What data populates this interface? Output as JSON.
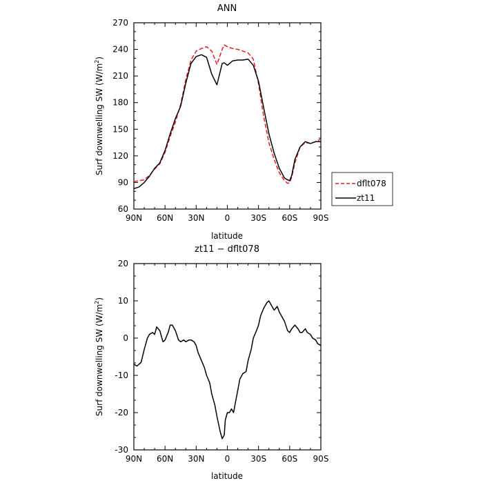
{
  "chart_data": [
    {
      "type": "line",
      "title": "ANN",
      "xlabel": "latitude",
      "ylabel": "Surf downwelling SW (W/m²)",
      "ylabel_main": "Surf downwelling SW (W/m",
      "ylabel_sup": "2",
      "ylabel_close": ")",
      "xlim": [
        90,
        -90
      ],
      "ylim": [
        60,
        270
      ],
      "x_ticks": [
        {
          "value": 90,
          "label": "90N"
        },
        {
          "value": 60,
          "label": "60N"
        },
        {
          "value": 30,
          "label": "30N"
        },
        {
          "value": 0,
          "label": "0"
        },
        {
          "value": -30,
          "label": "30S"
        },
        {
          "value": -60,
          "label": "60S"
        },
        {
          "value": -90,
          "label": "90S"
        }
      ],
      "y_ticks": [
        60,
        90,
        120,
        150,
        180,
        210,
        240,
        270
      ],
      "legend_position": "right",
      "series": [
        {
          "name": "dflt078",
          "color": "#e8191c",
          "dash": "dashed",
          "x": [
            90,
            85,
            80,
            75,
            70,
            65,
            60,
            55,
            50,
            45,
            40,
            35,
            30,
            25,
            20,
            15,
            10,
            5,
            3,
            0,
            -5,
            -10,
            -15,
            -20,
            -25,
            -30,
            -35,
            -40,
            -45,
            -50,
            -55,
            -58,
            -60,
            -62,
            -65,
            -70,
            -75,
            -80,
            -85,
            -90
          ],
          "y": [
            91,
            92,
            93,
            98,
            105,
            111,
            124,
            142,
            158,
            178,
            206,
            228,
            238,
            241,
            243,
            238,
            223,
            240,
            245,
            243,
            241,
            240,
            238,
            236,
            229,
            201,
            164,
            135,
            116,
            101,
            92,
            89,
            90,
            96,
            112,
            130,
            135,
            134,
            136,
            139
          ]
        },
        {
          "name": "zt11",
          "color": "#000000",
          "dash": "solid",
          "x": [
            90,
            85,
            80,
            75,
            70,
            65,
            60,
            55,
            50,
            45,
            40,
            35,
            30,
            25,
            20,
            15,
            10,
            5,
            3,
            0,
            -5,
            -10,
            -15,
            -20,
            -25,
            -30,
            -35,
            -40,
            -45,
            -50,
            -55,
            -58,
            -60,
            -62,
            -65,
            -70,
            -75,
            -80,
            -85,
            -90
          ],
          "y": [
            83,
            85,
            90,
            97,
            106,
            112,
            126,
            145,
            162,
            176,
            202,
            224,
            232,
            234,
            231,
            212,
            200,
            224,
            225,
            222,
            227,
            228,
            228,
            229,
            222,
            204,
            174,
            145,
            123,
            106,
            95,
            93,
            92,
            98,
            116,
            130,
            136,
            134,
            136,
            136
          ]
        }
      ]
    },
    {
      "type": "line",
      "title": "zt11 − dflt078",
      "xlabel": "latitude",
      "ylabel": "Surf downwelling SW (W/m²)",
      "ylabel_main": "Surf downwelling SW (W/m",
      "ylabel_sup": "2",
      "ylabel_close": ")",
      "xlim": [
        90,
        -90
      ],
      "ylim": [
        -30,
        20
      ],
      "x_ticks": [
        {
          "value": 90,
          "label": "90N"
        },
        {
          "value": 60,
          "label": "60N"
        },
        {
          "value": 30,
          "label": "30N"
        },
        {
          "value": 0,
          "label": "0"
        },
        {
          "value": -30,
          "label": "30S"
        },
        {
          "value": -60,
          "label": "60S"
        },
        {
          "value": -90,
          "label": "90S"
        }
      ],
      "y_ticks": [
        -30,
        -20,
        -10,
        0,
        10,
        20
      ],
      "series": [
        {
          "name": "",
          "color": "#000000",
          "dash": "solid",
          "x": [
            90,
            87,
            85,
            83,
            80,
            77,
            75,
            72,
            70,
            68,
            65,
            62,
            60,
            57,
            55,
            53,
            50,
            47,
            45,
            42,
            40,
            37,
            35,
            32,
            30,
            28,
            25,
            22,
            20,
            17,
            15,
            12,
            10,
            7,
            5,
            3,
            2,
            0,
            -2,
            -4,
            -6,
            -8,
            -10,
            -12,
            -15,
            -18,
            -20,
            -23,
            -25,
            -28,
            -30,
            -32,
            -35,
            -38,
            -40,
            -42,
            -45,
            -48,
            -50,
            -53,
            -55,
            -58,
            -60,
            -62,
            -65,
            -68,
            -70,
            -72,
            -75,
            -77,
            -80,
            -82,
            -85,
            -87,
            -90
          ],
          "y": [
            -7,
            -7.5,
            -7,
            -6.5,
            -3,
            0,
            1,
            1.5,
            1,
            3,
            2,
            -1,
            -0.5,
            1.5,
            3.5,
            3.5,
            2,
            -0.5,
            -1,
            -0.5,
            -1,
            -0.5,
            -0.5,
            -1,
            -2,
            -4,
            -6,
            -8,
            -10,
            -12,
            -15,
            -18,
            -21,
            -25,
            -27,
            -26,
            -22,
            -20,
            -20,
            -19,
            -20,
            -17,
            -14,
            -11,
            -9.5,
            -9,
            -6,
            -3,
            0,
            2,
            3.5,
            6,
            8,
            9.5,
            10,
            9,
            7.5,
            8.5,
            7,
            5.5,
            4.5,
            2,
            1.5,
            2.5,
            3.5,
            2.5,
            1.5,
            1.5,
            2.5,
            1.5,
            1,
            0,
            -0.5,
            -1.5,
            -2
          ]
        }
      ]
    }
  ]
}
